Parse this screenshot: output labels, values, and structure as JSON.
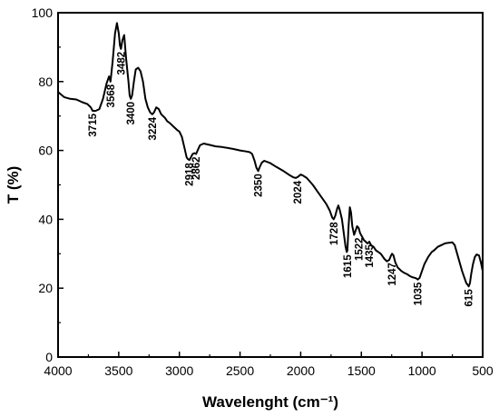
{
  "chart_data": {
    "type": "line",
    "title": "",
    "xlabel": "Wavelenght (cm⁻¹)",
    "ylabel": "T (%)",
    "xlim": [
      4000,
      500
    ],
    "ylim": [
      0,
      100
    ],
    "x_reversed": true,
    "xticks": [
      4000,
      3500,
      3000,
      2500,
      2000,
      1500,
      1000,
      500
    ],
    "yticks": [
      0,
      20,
      40,
      60,
      80,
      100
    ],
    "grid": false,
    "legend": "none",
    "line_color": "#000000",
    "series": [
      {
        "x": [
          4000,
          3950,
          3900,
          3850,
          3800,
          3760,
          3730,
          3715,
          3690,
          3660,
          3630,
          3600,
          3580,
          3568,
          3550,
          3530,
          3515,
          3500,
          3490,
          3482,
          3470,
          3455,
          3440,
          3420,
          3410,
          3400,
          3390,
          3375,
          3360,
          3340,
          3320,
          3300,
          3280,
          3260,
          3240,
          3224,
          3210,
          3190,
          3170,
          3150,
          3120,
          3100,
          3080,
          3050,
          3020,
          3000,
          2980,
          2960,
          2940,
          2930,
          2918,
          2905,
          2890,
          2875,
          2862,
          2850,
          2830,
          2800,
          2750,
          2700,
          2650,
          2600,
          2550,
          2500,
          2450,
          2420,
          2400,
          2380,
          2365,
          2350,
          2340,
          2320,
          2300,
          2250,
          2200,
          2150,
          2100,
          2060,
          2040,
          2024,
          2000,
          1980,
          1950,
          1900,
          1860,
          1820,
          1790,
          1760,
          1740,
          1728,
          1715,
          1700,
          1690,
          1680,
          1660,
          1645,
          1630,
          1620,
          1615,
          1605,
          1595,
          1585,
          1575,
          1560,
          1545,
          1535,
          1522,
          1510,
          1495,
          1480,
          1465,
          1450,
          1440,
          1435,
          1420,
          1400,
          1380,
          1360,
          1340,
          1310,
          1290,
          1270,
          1255,
          1247,
          1235,
          1220,
          1200,
          1185,
          1170,
          1150,
          1120,
          1100,
          1080,
          1060,
          1045,
          1035,
          1020,
          1000,
          980,
          950,
          920,
          900,
          870,
          840,
          810,
          780,
          750,
          730,
          710,
          690,
          670,
          650,
          635,
          620,
          615,
          605,
          595,
          580,
          565,
          550,
          530,
          515,
          500
        ],
        "y": [
          77,
          75.5,
          75,
          74.8,
          74,
          73.5,
          72.5,
          71.5,
          71.5,
          72,
          75,
          79.5,
          81.5,
          80,
          86,
          94,
          97,
          94,
          90.5,
          89.5,
          92,
          93.5,
          87,
          80,
          76,
          75,
          76,
          80,
          83.5,
          84,
          83,
          80,
          75,
          72.5,
          71,
          70.5,
          71,
          72.5,
          72,
          70.5,
          69.5,
          68.5,
          68,
          67,
          66,
          65.5,
          64,
          61,
          58,
          57.5,
          57.2,
          58,
          59,
          59.2,
          59,
          60,
          61.5,
          62,
          61.6,
          61.2,
          61,
          60.7,
          60.4,
          60,
          59.7,
          59.5,
          59,
          57,
          55,
          54,
          55,
          56.5,
          57,
          56.3,
          55.2,
          54.2,
          53,
          52.2,
          52,
          52.3,
          53,
          52.7,
          52,
          50,
          48,
          46,
          44.5,
          42.5,
          40.5,
          40,
          41,
          43,
          44,
          43,
          40,
          36,
          32,
          30.5,
          31,
          38,
          43.5,
          42,
          38,
          35.5,
          37,
          38,
          37.5,
          36,
          35,
          34,
          33.5,
          33,
          33.2,
          33.5,
          32.5,
          32,
          31,
          30.5,
          30,
          28.5,
          27.8,
          28.2,
          29.5,
          30,
          29.5,
          27.5,
          26,
          25.5,
          25,
          24.5,
          24,
          23.5,
          23.2,
          23,
          22.8,
          22.5,
          23,
          25,
          27,
          29,
          30.5,
          31,
          32,
          32.5,
          33,
          33.2,
          33.3,
          32.5,
          30,
          27.5,
          25,
          23,
          21.5,
          20.8,
          20.5,
          21.5,
          24,
          27,
          29,
          29.8,
          29.5,
          27.5,
          25
        ]
      }
    ],
    "annotations": [
      "3715",
      "3568",
      "3482",
      "3400",
      "3224",
      "2918",
      "2862",
      "2350",
      "2024",
      "1728",
      "1615",
      "1522",
      "1435",
      "1247",
      "1035",
      "615"
    ],
    "annotation_x": [
      3715,
      3568,
      3482,
      3400,
      3224,
      2918,
      2862,
      2350,
      2024,
      1728,
      1615,
      1522,
      1435,
      1247,
      1035,
      615
    ],
    "annotation_y": [
      71.5,
      80,
      89.5,
      75,
      70.5,
      57.2,
      59,
      54,
      52,
      40,
      30.5,
      35.5,
      33.5,
      28.2,
      22.5,
      20.5
    ]
  }
}
